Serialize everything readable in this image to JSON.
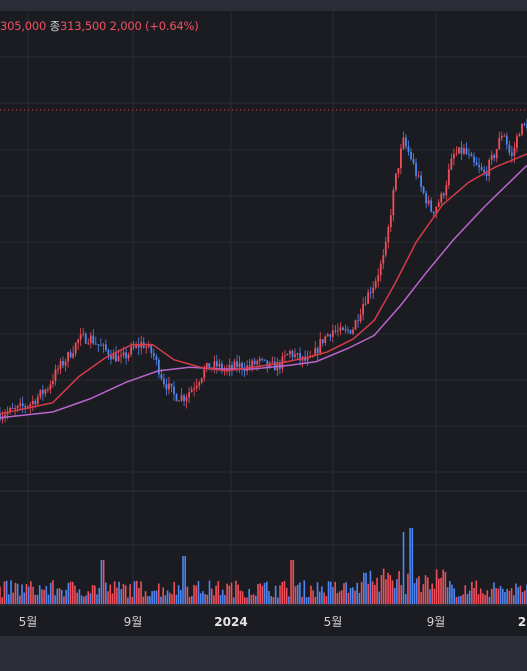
{
  "info": {
    "low_value": "305,000",
    "close_label": "종",
    "close_value": "313,500",
    "change_text": "2,000 (+0.64%)"
  },
  "chart_data": {
    "type": "candlestick",
    "x_axis_labels": [
      "5월",
      "9월",
      "2024",
      "5월",
      "9월",
      "2"
    ],
    "price_series": [
      {
        "t": 0,
        "p": 110
      },
      {
        "t": 0.03,
        "p": 112
      },
      {
        "t": 0.06,
        "p": 116
      },
      {
        "t": 0.09,
        "p": 124
      },
      {
        "t": 0.11,
        "p": 134
      },
      {
        "t": 0.13,
        "p": 141
      },
      {
        "t": 0.15,
        "p": 150
      },
      {
        "t": 0.17,
        "p": 151
      },
      {
        "t": 0.19,
        "p": 146
      },
      {
        "t": 0.21,
        "p": 142
      },
      {
        "t": 0.23,
        "p": 139
      },
      {
        "t": 0.25,
        "p": 144
      },
      {
        "t": 0.27,
        "p": 148
      },
      {
        "t": 0.29,
        "p": 142
      },
      {
        "t": 0.31,
        "p": 128
      },
      {
        "t": 0.33,
        "p": 120
      },
      {
        "t": 0.35,
        "p": 119
      },
      {
        "t": 0.37,
        "p": 126
      },
      {
        "t": 0.39,
        "p": 134
      },
      {
        "t": 0.41,
        "p": 136
      },
      {
        "t": 0.43,
        "p": 133
      },
      {
        "t": 0.45,
        "p": 136
      },
      {
        "t": 0.47,
        "p": 135
      },
      {
        "t": 0.49,
        "p": 138
      },
      {
        "t": 0.51,
        "p": 135
      },
      {
        "t": 0.53,
        "p": 136
      },
      {
        "t": 0.55,
        "p": 143
      },
      {
        "t": 0.57,
        "p": 139
      },
      {
        "t": 0.59,
        "p": 138
      },
      {
        "t": 0.61,
        "p": 149
      },
      {
        "t": 0.63,
        "p": 155
      },
      {
        "t": 0.65,
        "p": 153
      },
      {
        "t": 0.67,
        "p": 156
      },
      {
        "t": 0.69,
        "p": 170
      },
      {
        "t": 0.71,
        "p": 180
      },
      {
        "t": 0.73,
        "p": 195
      },
      {
        "t": 0.75,
        "p": 235
      },
      {
        "t": 0.765,
        "p": 256
      },
      {
        "t": 0.78,
        "p": 247
      },
      {
        "t": 0.8,
        "p": 230
      },
      {
        "t": 0.82,
        "p": 218
      },
      {
        "t": 0.84,
        "p": 227
      },
      {
        "t": 0.86,
        "p": 248
      },
      {
        "t": 0.88,
        "p": 251
      },
      {
        "t": 0.9,
        "p": 243
      },
      {
        "t": 0.92,
        "p": 238
      },
      {
        "t": 0.94,
        "p": 250
      },
      {
        "t": 0.955,
        "p": 262
      },
      {
        "t": 0.97,
        "p": 246
      },
      {
        "t": 0.985,
        "p": 262
      },
      {
        "t": 1,
        "p": 265
      }
    ],
    "ma_short": [
      {
        "t": 0,
        "p": 110
      },
      {
        "t": 0.1,
        "p": 116
      },
      {
        "t": 0.15,
        "p": 130
      },
      {
        "t": 0.2,
        "p": 140
      },
      {
        "t": 0.25,
        "p": 147
      },
      {
        "t": 0.29,
        "p": 147
      },
      {
        "t": 0.33,
        "p": 139
      },
      {
        "t": 0.38,
        "p": 135
      },
      {
        "t": 0.43,
        "p": 133
      },
      {
        "t": 0.48,
        "p": 135
      },
      {
        "t": 0.53,
        "p": 137
      },
      {
        "t": 0.58,
        "p": 140
      },
      {
        "t": 0.62,
        "p": 143
      },
      {
        "t": 0.67,
        "p": 150
      },
      {
        "t": 0.71,
        "p": 160
      },
      {
        "t": 0.75,
        "p": 180
      },
      {
        "t": 0.79,
        "p": 202
      },
      {
        "t": 0.84,
        "p": 222
      },
      {
        "t": 0.89,
        "p": 234
      },
      {
        "t": 0.94,
        "p": 242
      },
      {
        "t": 1,
        "p": 249
      }
    ],
    "ma_long": [
      {
        "t": 0,
        "p": 108
      },
      {
        "t": 0.1,
        "p": 111
      },
      {
        "t": 0.17,
        "p": 118
      },
      {
        "t": 0.24,
        "p": 127
      },
      {
        "t": 0.3,
        "p": 133
      },
      {
        "t": 0.36,
        "p": 135
      },
      {
        "t": 0.42,
        "p": 134
      },
      {
        "t": 0.48,
        "p": 134
      },
      {
        "t": 0.55,
        "p": 136
      },
      {
        "t": 0.6,
        "p": 138
      },
      {
        "t": 0.66,
        "p": 145
      },
      {
        "t": 0.71,
        "p": 152
      },
      {
        "t": 0.76,
        "p": 168
      },
      {
        "t": 0.81,
        "p": 186
      },
      {
        "t": 0.86,
        "p": 203
      },
      {
        "t": 0.92,
        "p": 221
      },
      {
        "t": 1,
        "p": 243
      }
    ],
    "price_range": [
      80,
      310
    ],
    "volume_spikes": [
      {
        "t": 0.195,
        "p": 0.55
      },
      {
        "t": 0.35,
        "p": 0.6
      },
      {
        "t": 0.555,
        "p": 0.55
      },
      {
        "t": 0.765,
        "p": 0.9
      },
      {
        "t": 0.78,
        "p": 0.95
      }
    ],
    "reference_line": "dotted",
    "colors": {
      "up": "#ef4f5a",
      "down": "#4f86f0",
      "ma_short": "#d63a48",
      "ma_long": "#b865cc",
      "grid": "#2a2b33"
    }
  }
}
